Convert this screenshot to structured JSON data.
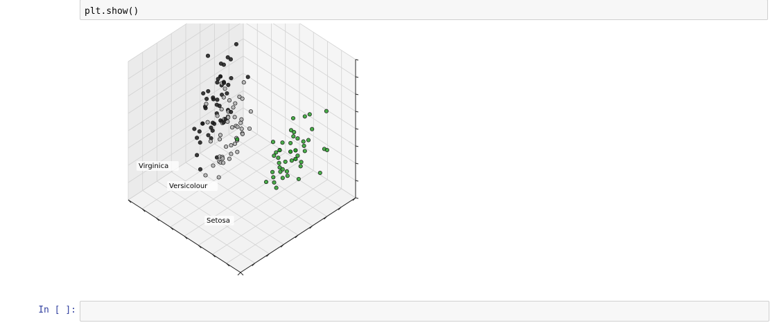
{
  "cells": {
    "code_line": "plt.show()",
    "empty_prompt": "In [ ]:"
  },
  "chart_data": {
    "type": "scatter3d",
    "title": "",
    "annotations": [
      "Setosa",
      "Versicolour",
      "Virginica"
    ],
    "colors": {
      "setosa": "#2ca02c",
      "versicolour": "#b0b0b0",
      "virginica": "#1a1a1a"
    },
    "grid": true,
    "series": [
      {
        "name": "Setosa",
        "points": [
          [
            -2.7,
            0.3,
            0.0
          ],
          [
            -2.6,
            -0.1,
            0.1
          ],
          [
            -2.8,
            -0.2,
            0.0
          ],
          [
            -2.6,
            -0.3,
            -0.1
          ],
          [
            -2.7,
            0.3,
            -0.1
          ],
          [
            -2.3,
            0.7,
            -0.1
          ],
          [
            -2.8,
            -0.1,
            -0.2
          ],
          [
            -2.6,
            0.2,
            0.0
          ],
          [
            -2.9,
            -0.6,
            -0.1
          ],
          [
            -2.6,
            -0.1,
            0.1
          ],
          [
            -2.5,
            0.6,
            0.0
          ],
          [
            -2.6,
            0.1,
            -0.2
          ],
          [
            -2.7,
            -0.3,
            0.1
          ],
          [
            -3.2,
            -0.5,
            -0.1
          ],
          [
            -2.6,
            1.2,
            0.2
          ],
          [
            -2.4,
            1.3,
            -0.3
          ],
          [
            -2.6,
            0.8,
            0.1
          ],
          [
            -2.7,
            0.3,
            0.0
          ],
          [
            -2.2,
            0.9,
            0.2
          ],
          [
            -2.6,
            0.5,
            -0.2
          ],
          [
            -2.3,
            0.4,
            0.3
          ],
          [
            -2.6,
            0.4,
            -0.1
          ],
          [
            -3.4,
            0.1,
            -0.2
          ],
          [
            -2.3,
            0.1,
            0.1
          ],
          [
            -2.4,
            -0.0,
            -0.2
          ],
          [
            -2.4,
            -0.2,
            0.2
          ],
          [
            -2.5,
            0.1,
            -0.1
          ],
          [
            -2.6,
            0.4,
            0.1
          ],
          [
            -2.6,
            0.3,
            0.2
          ],
          [
            -2.6,
            -0.1,
            -0.1
          ],
          [
            -2.5,
            -0.1,
            0.0
          ],
          [
            -2.4,
            0.3,
            0.2
          ],
          [
            -2.9,
            0.9,
            -0.4
          ],
          [
            -2.7,
            1.1,
            -0.2
          ],
          [
            -2.6,
            -0.1,
            0.1
          ],
          [
            -2.8,
            0.2,
            0.2
          ],
          [
            -2.6,
            0.6,
            0.3
          ],
          [
            -2.8,
            0.4,
            -0.2
          ],
          [
            -2.9,
            -0.4,
            -0.1
          ],
          [
            -2.6,
            0.2,
            0.0
          ],
          [
            -2.7,
            0.3,
            -0.1
          ],
          [
            -2.4,
            -1.2,
            0.5
          ],
          [
            -3.1,
            -0.4,
            -0.2
          ],
          [
            -2.4,
            0.2,
            -0.3
          ],
          [
            -2.2,
            0.4,
            -0.2
          ],
          [
            -2.6,
            -0.2,
            0.1
          ],
          [
            -2.6,
            0.6,
            -0.1
          ],
          [
            -2.8,
            -0.1,
            -0.1
          ],
          [
            -2.6,
            0.7,
            0.0
          ],
          [
            -2.6,
            0.2,
            0.1
          ]
        ]
      },
      {
        "name": "Versicolour",
        "points": [
          [
            1.3,
            0.7,
            -0.1
          ],
          [
            0.9,
            0.3,
            0.2
          ],
          [
            1.5,
            0.5,
            -0.2
          ],
          [
            0.2,
            -0.8,
            -0.2
          ],
          [
            1.1,
            0.1,
            -0.1
          ],
          [
            0.6,
            -0.4,
            0.3
          ],
          [
            1.1,
            0.3,
            0.2
          ],
          [
            -0.8,
            -1.0,
            0.0
          ],
          [
            1.0,
            0.2,
            -0.4
          ],
          [
            -0.0,
            -0.7,
            0.1
          ],
          [
            -0.5,
            -1.3,
            -0.1
          ],
          [
            0.5,
            -0.0,
            0.0
          ],
          [
            0.3,
            -0.6,
            -0.4
          ],
          [
            0.9,
            -0.1,
            0.1
          ],
          [
            -0.2,
            -0.3,
            0.0
          ],
          [
            0.9,
            0.5,
            -0.2
          ],
          [
            0.7,
            -0.3,
            0.4
          ],
          [
            0.2,
            -0.3,
            -0.2
          ],
          [
            1.1,
            -0.5,
            -0.1
          ],
          [
            0.0,
            -0.6,
            -0.2
          ],
          [
            1.1,
            -0.1,
            0.4
          ],
          [
            0.4,
            0.1,
            -0.1
          ],
          [
            1.3,
            -0.5,
            0.1
          ],
          [
            0.8,
            -0.1,
            0.3
          ],
          [
            0.7,
            0.2,
            -0.1
          ],
          [
            0.9,
            0.3,
            -0.2
          ],
          [
            1.3,
            0.3,
            -0.3
          ],
          [
            1.6,
            0.2,
            0.0
          ],
          [
            0.9,
            -0.2,
            0.1
          ],
          [
            -0.3,
            -0.4,
            0.0
          ],
          [
            -0.0,
            -0.7,
            -0.1
          ],
          [
            -0.2,
            -0.7,
            -0.1
          ],
          [
            0.2,
            -0.3,
            -0.1
          ],
          [
            1.4,
            -0.5,
            0.3
          ],
          [
            0.6,
            -0.4,
            0.6
          ],
          [
            0.8,
            0.3,
            0.4
          ],
          [
            1.2,
            0.4,
            -0.1
          ],
          [
            0.8,
            -0.3,
            -0.3
          ],
          [
            0.2,
            -0.2,
            0.2
          ],
          [
            0.2,
            -0.6,
            0.1
          ],
          [
            0.4,
            -0.6,
            0.3
          ],
          [
            0.9,
            0.1,
            0.2
          ],
          [
            0.3,
            -0.4,
            -0.1
          ],
          [
            -0.7,
            -1.0,
            0.0
          ],
          [
            0.3,
            -0.5,
            0.2
          ],
          [
            0.3,
            -0.2,
            0.3
          ],
          [
            0.4,
            -0.3,
            0.2
          ],
          [
            0.6,
            -0.0,
            0.0
          ],
          [
            -0.9,
            -0.8,
            0.0
          ],
          [
            0.2,
            -0.4,
            0.2
          ]
        ]
      },
      {
        "name": "Virginica",
        "points": [
          [
            2.5,
            -0.0,
            0.6
          ],
          [
            1.4,
            -0.6,
            0.1
          ],
          [
            2.6,
            0.3,
            -0.0
          ],
          [
            2.0,
            -0.2,
            0.3
          ],
          [
            2.4,
            0.1,
            0.1
          ],
          [
            3.4,
            0.5,
            -0.5
          ],
          [
            0.5,
            -1.2,
            0.3
          ],
          [
            2.9,
            0.3,
            -0.3
          ],
          [
            2.3,
            -0.3,
            -0.3
          ],
          [
            2.9,
            0.8,
            0.3
          ],
          [
            1.7,
            0.2,
            0.2
          ],
          [
            1.8,
            -0.2,
            -0.1
          ],
          [
            2.2,
            0.2,
            0.0
          ],
          [
            1.3,
            -0.8,
            0.0
          ],
          [
            1.6,
            -0.5,
            0.4
          ],
          [
            1.9,
            0.1,
            0.4
          ],
          [
            1.9,
            0.0,
            -0.0
          ],
          [
            3.5,
            1.2,
            0.3
          ],
          [
            3.8,
            0.3,
            -0.5
          ],
          [
            1.3,
            -0.8,
            -0.2
          ],
          [
            2.4,
            0.4,
            0.2
          ],
          [
            1.2,
            -0.6,
            0.3
          ],
          [
            3.5,
            0.5,
            -0.6
          ],
          [
            1.4,
            -0.1,
            -0.0
          ],
          [
            2.3,
            0.3,
            0.2
          ],
          [
            2.6,
            0.6,
            -0.2
          ],
          [
            1.3,
            -0.1,
            0.0
          ],
          [
            1.3,
            -0.0,
            0.0
          ],
          [
            2.2,
            -0.2,
            0.1
          ],
          [
            2.4,
            0.6,
            -0.2
          ],
          [
            2.8,
            0.3,
            -0.3
          ],
          [
            3.2,
            1.4,
            -0.1
          ],
          [
            2.1,
            -0.2,
            0.2
          ],
          [
            1.4,
            -0.2,
            -0.4
          ],
          [
            1.8,
            -0.5,
            -0.5
          ],
          [
            3.1,
            0.8,
            0.3
          ],
          [
            2.1,
            0.2,
            0.5
          ],
          [
            1.9,
            0.0,
            0.1
          ],
          [
            1.2,
            -0.1,
            0.0
          ],
          [
            2.1,
            0.4,
            0.2
          ],
          [
            2.3,
            0.2,
            0.3
          ],
          [
            1.9,
            0.4,
            0.3
          ],
          [
            1.4,
            -0.6,
            0.1
          ],
          [
            2.6,
            0.3,
            0.2
          ],
          [
            2.4,
            0.4,
            0.4
          ],
          [
            1.9,
            0.2,
            0.3
          ],
          [
            1.5,
            -0.4,
            -0.1
          ],
          [
            1.8,
            0.1,
            0.2
          ],
          [
            1.9,
            0.1,
            0.4
          ],
          [
            1.4,
            -0.3,
            0.3
          ]
        ]
      }
    ]
  }
}
